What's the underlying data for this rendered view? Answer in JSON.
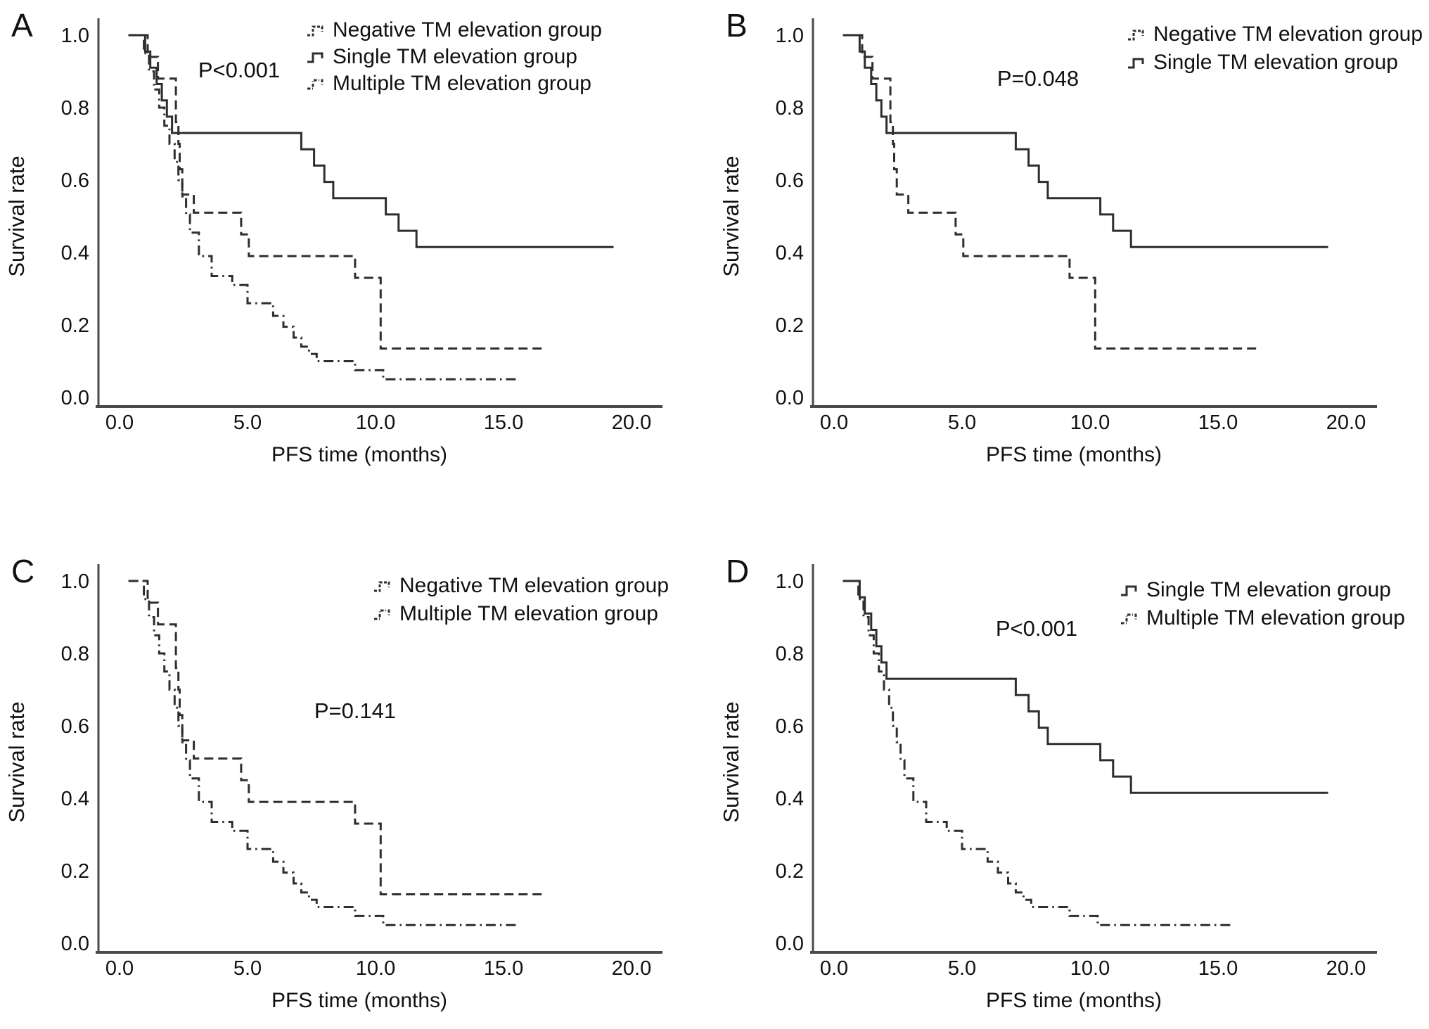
{
  "figure": {
    "background": "#ffffff",
    "curve_color": "#2e2e2e",
    "axis_color": "#4a4a4a",
    "text_color": "#111111"
  },
  "chart_data": {
    "type": "line",
    "subtype": "kaplan-meier-step",
    "title": "",
    "xlabel": "PFS time (months)",
    "ylabel": "Survival rate",
    "xlim": [
      0,
      21.2
    ],
    "ylim": [
      0,
      1.0
    ],
    "grid": false,
    "legend_position": "top-right",
    "x_ticks": [
      {
        "label": "0.0",
        "value": 0
      },
      {
        "label": "5.0",
        "value": 5
      },
      {
        "label": "10.0",
        "value": 10
      },
      {
        "label": "15.0",
        "value": 15
      },
      {
        "label": "20.0",
        "value": 20
      }
    ],
    "y_ticks": [
      {
        "label": "1.0",
        "value": 1.0
      },
      {
        "label": "0.8",
        "value": 0.8
      },
      {
        "label": "0.6",
        "value": 0.6
      },
      {
        "label": "0.4",
        "value": 0.4
      },
      {
        "label": "0.2",
        "value": 0.2
      },
      {
        "label": "0.0",
        "value": 0.0
      }
    ],
    "series": {
      "negative": {
        "label": "Negative TM elevation group",
        "line_style": "dashed",
        "points": [
          [
            0.35,
            1.0
          ],
          [
            1.1,
            0.94
          ],
          [
            1.5,
            0.88
          ],
          [
            2.2,
            0.76
          ],
          [
            2.3,
            0.7
          ],
          [
            2.35,
            0.63
          ],
          [
            2.45,
            0.56
          ],
          [
            2.9,
            0.51
          ],
          [
            4.75,
            0.45
          ],
          [
            5.05,
            0.39
          ],
          [
            9.2,
            0.33
          ],
          [
            10.2,
            0.135
          ]
        ],
        "end_month": 16.5
      },
      "single": {
        "label": "Single TM elevation group",
        "line_style": "solid",
        "points": [
          [
            0.35,
            1.0
          ],
          [
            1.0,
            0.955
          ],
          [
            1.2,
            0.91
          ],
          [
            1.45,
            0.865
          ],
          [
            1.65,
            0.82
          ],
          [
            1.85,
            0.775
          ],
          [
            2.05,
            0.73
          ],
          [
            7.1,
            0.685
          ],
          [
            7.6,
            0.64
          ],
          [
            8.0,
            0.595
          ],
          [
            8.35,
            0.55
          ],
          [
            10.4,
            0.505
          ],
          [
            10.9,
            0.46
          ],
          [
            11.6,
            0.415
          ]
        ],
        "end_month": 19.3
      },
      "multiple": {
        "label": "Multiple TM elevation group",
        "line_style": "dash-dot",
        "points": [
          [
            0.35,
            1.0
          ],
          [
            0.95,
            0.95
          ],
          [
            1.15,
            0.9
          ],
          [
            1.35,
            0.85
          ],
          [
            1.55,
            0.8
          ],
          [
            1.75,
            0.75
          ],
          [
            1.95,
            0.7
          ],
          [
            2.15,
            0.65
          ],
          [
            2.3,
            0.6
          ],
          [
            2.45,
            0.555
          ],
          [
            2.6,
            0.505
          ],
          [
            2.75,
            0.455
          ],
          [
            3.1,
            0.39
          ],
          [
            3.6,
            0.335
          ],
          [
            4.4,
            0.31
          ],
          [
            5.0,
            0.26
          ],
          [
            6.0,
            0.225
          ],
          [
            6.4,
            0.195
          ],
          [
            6.8,
            0.165
          ],
          [
            7.1,
            0.14
          ],
          [
            7.4,
            0.12
          ],
          [
            7.7,
            0.1
          ],
          [
            9.2,
            0.075
          ],
          [
            10.3,
            0.05
          ]
        ],
        "end_month": 15.5
      }
    },
    "panels": [
      {
        "letter": "A",
        "p_value_label": "P<0.001",
        "series": [
          "negative",
          "single",
          "multiple"
        ],
        "p_pos": {
          "x": 340,
          "y": 110
        },
        "legend_pos": {
          "x": 437,
          "y": 42,
          "dy": 38
        }
      },
      {
        "letter": "B",
        "p_value_label": "P=0.048",
        "series": [
          "negative",
          "single"
        ],
        "p_pos": {
          "x": 460,
          "y": 122
        },
        "legend_pos": {
          "x": 588,
          "y": 48,
          "dy": 40
        }
      },
      {
        "letter": "C",
        "p_value_label": "P=0.141",
        "series": [
          "negative",
          "multiple"
        ],
        "p_pos": {
          "x": 505,
          "y": 245
        },
        "legend_pos": {
          "x": 532,
          "y": 56,
          "dy": 40
        }
      },
      {
        "letter": "D",
        "p_value_label": "P<0.001",
        "series": [
          "single",
          "multiple"
        ],
        "p_pos": {
          "x": 458,
          "y": 128
        },
        "legend_pos": {
          "x": 578,
          "y": 62,
          "dy": 40
        }
      }
    ]
  }
}
